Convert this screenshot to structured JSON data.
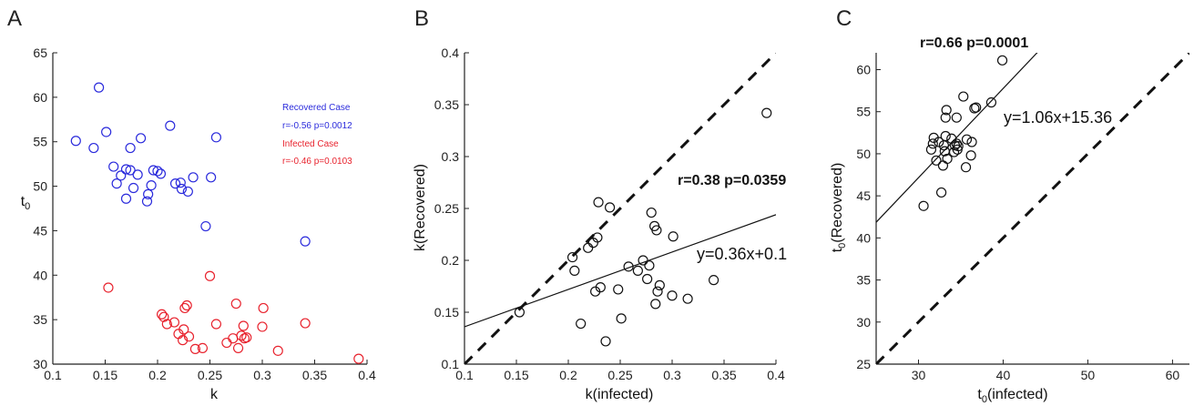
{
  "chart_data": [
    {
      "panel": "A",
      "type": "scatter",
      "xlabel": "k",
      "ylabel": "t",
      "ylabel_sub": "0",
      "xlim": [
        0.1,
        0.4
      ],
      "ylim": [
        30,
        65
      ],
      "xticks": [
        "0.1",
        "0.15",
        "0.2",
        "0.25",
        "0.3",
        "0.35",
        "0.4"
      ],
      "yticks": [
        "30",
        "35",
        "40",
        "45",
        "50",
        "55",
        "60",
        "65"
      ],
      "legend": [
        {
          "name": "Recovered Case",
          "stat": "r=-0.56 p=0.0012",
          "color": "#2b2bdc"
        },
        {
          "name": "Infected Case",
          "stat": "r=-0.46 p=0.0103",
          "color": "#e8232e"
        }
      ],
      "series": [
        {
          "name": "Recovered Case",
          "color": "#2b2bdc",
          "points": [
            [
              0.122,
              55.1
            ],
            [
              0.139,
              54.3
            ],
            [
              0.144,
              61.1
            ],
            [
              0.151,
              56.1
            ],
            [
              0.158,
              52.2
            ],
            [
              0.161,
              50.3
            ],
            [
              0.165,
              51.2
            ],
            [
              0.17,
              51.9
            ],
            [
              0.17,
              48.6
            ],
            [
              0.174,
              51.8
            ],
            [
              0.174,
              54.3
            ],
            [
              0.177,
              49.8
            ],
            [
              0.181,
              51.3
            ],
            [
              0.184,
              55.4
            ],
            [
              0.19,
              48.3
            ],
            [
              0.191,
              49.1
            ],
            [
              0.194,
              50.1
            ],
            [
              0.196,
              51.8
            ],
            [
              0.2,
              51.7
            ],
            [
              0.203,
              51.4
            ],
            [
              0.212,
              56.8
            ],
            [
              0.217,
              50.3
            ],
            [
              0.222,
              50.4
            ],
            [
              0.223,
              49.7
            ],
            [
              0.229,
              49.4
            ],
            [
              0.234,
              51
            ],
            [
              0.246,
              45.5
            ],
            [
              0.251,
              51
            ],
            [
              0.256,
              55.5
            ],
            [
              0.341,
              43.8
            ]
          ]
        },
        {
          "name": "Infected Case",
          "color": "#e8232e",
          "points": [
            [
              0.153,
              38.6
            ],
            [
              0.204,
              35.6
            ],
            [
              0.206,
              35.3
            ],
            [
              0.209,
              34.5
            ],
            [
              0.216,
              34.7
            ],
            [
              0.22,
              33.4
            ],
            [
              0.224,
              32.7
            ],
            [
              0.225,
              33.9
            ],
            [
              0.226,
              36.3
            ],
            [
              0.228,
              36.6
            ],
            [
              0.23,
              33.1
            ],
            [
              0.236,
              31.7
            ],
            [
              0.243,
              31.8
            ],
            [
              0.25,
              39.9
            ],
            [
              0.256,
              34.5
            ],
            [
              0.266,
              32.4
            ],
            [
              0.272,
              32.9
            ],
            [
              0.275,
              36.8
            ],
            [
              0.277,
              31.8
            ],
            [
              0.28,
              33.2
            ],
            [
              0.282,
              34.3
            ],
            [
              0.283,
              32.9
            ],
            [
              0.285,
              33
            ],
            [
              0.3,
              34.2
            ],
            [
              0.301,
              36.3
            ],
            [
              0.315,
              31.5
            ],
            [
              0.341,
              34.6
            ],
            [
              0.392,
              30.6
            ]
          ]
        }
      ]
    },
    {
      "panel": "B",
      "type": "scatter",
      "xlabel": "k(infected)",
      "ylabel": "k(Recovered)",
      "xlim": [
        0.1,
        0.4
      ],
      "ylim": [
        0.1,
        0.4
      ],
      "xticks": [
        "0.1",
        "0.15",
        "0.2",
        "0.25",
        "0.3",
        "0.35",
        "0.4"
      ],
      "yticks": [
        "0.1",
        "0.15",
        "0.2",
        "0.25",
        "0.3",
        "0.35",
        "0.4"
      ],
      "stat": "r=0.38 p=0.0359",
      "equation": "y=0.36x+0.1",
      "fit": {
        "slope": 0.36,
        "intercept": 0.1
      },
      "identity_line": true,
      "points": [
        [
          0.153,
          0.15
        ],
        [
          0.204,
          0.203
        ],
        [
          0.206,
          0.19
        ],
        [
          0.212,
          0.139
        ],
        [
          0.219,
          0.212
        ],
        [
          0.224,
          0.217
        ],
        [
          0.226,
          0.17
        ],
        [
          0.228,
          0.222
        ],
        [
          0.229,
          0.256
        ],
        [
          0.231,
          0.174
        ],
        [
          0.236,
          0.122
        ],
        [
          0.24,
          0.251
        ],
        [
          0.248,
          0.172
        ],
        [
          0.251,
          0.144
        ],
        [
          0.258,
          0.194
        ],
        [
          0.267,
          0.19
        ],
        [
          0.272,
          0.2
        ],
        [
          0.276,
          0.182
        ],
        [
          0.278,
          0.195
        ],
        [
          0.28,
          0.246
        ],
        [
          0.283,
          0.233
        ],
        [
          0.284,
          0.158
        ],
        [
          0.285,
          0.229
        ],
        [
          0.286,
          0.17
        ],
        [
          0.288,
          0.176
        ],
        [
          0.3,
          0.166
        ],
        [
          0.301,
          0.223
        ],
        [
          0.315,
          0.163
        ],
        [
          0.34,
          0.181
        ],
        [
          0.391,
          0.342
        ]
      ]
    },
    {
      "panel": "C",
      "type": "scatter",
      "xlabel": "t",
      "xlabel_sub": "0",
      "xlabel_rest": "(infected)",
      "ylabel": "t",
      "ylabel_sub": "0",
      "ylabel_rest": "(Recovered)",
      "xlim": [
        25,
        62
      ],
      "ylim": [
        25,
        62
      ],
      "xticks": [
        "30",
        "40",
        "50",
        "60"
      ],
      "yticks": [
        "25",
        "30",
        "35",
        "40",
        "45",
        "50",
        "55",
        "60"
      ],
      "stat": "r=0.66 p=0.0001",
      "equation": "y=1.06x+15.36",
      "fit": {
        "slope": 1.06,
        "intercept": 15.36
      },
      "identity_line": true,
      "points": [
        [
          30.6,
          43.8
        ],
        [
          31.5,
          50.5
        ],
        [
          31.7,
          51.2
        ],
        [
          31.8,
          51.9
        ],
        [
          32.1,
          49.2
        ],
        [
          32.4,
          51.4
        ],
        [
          32.7,
          45.4
        ],
        [
          32.9,
          48.6
        ],
        [
          33,
          51
        ],
        [
          33.1,
          50.3
        ],
        [
          33.2,
          52.1
        ],
        [
          33.2,
          54.3
        ],
        [
          33.3,
          55.2
        ],
        [
          33.4,
          49.4
        ],
        [
          33.9,
          51.8
        ],
        [
          34.2,
          50.2
        ],
        [
          34.3,
          51
        ],
        [
          34.5,
          54.3
        ],
        [
          34.5,
          51.2
        ],
        [
          34.6,
          50.5
        ],
        [
          34.7,
          50.9
        ],
        [
          35.3,
          56.8
        ],
        [
          35.6,
          48.4
        ],
        [
          35.7,
          51.7
        ],
        [
          36.2,
          49.8
        ],
        [
          36.3,
          51.4
        ],
        [
          36.6,
          55.4
        ],
        [
          36.8,
          55.5
        ],
        [
          38.6,
          56.1
        ],
        [
          39.9,
          61.1
        ]
      ]
    }
  ]
}
